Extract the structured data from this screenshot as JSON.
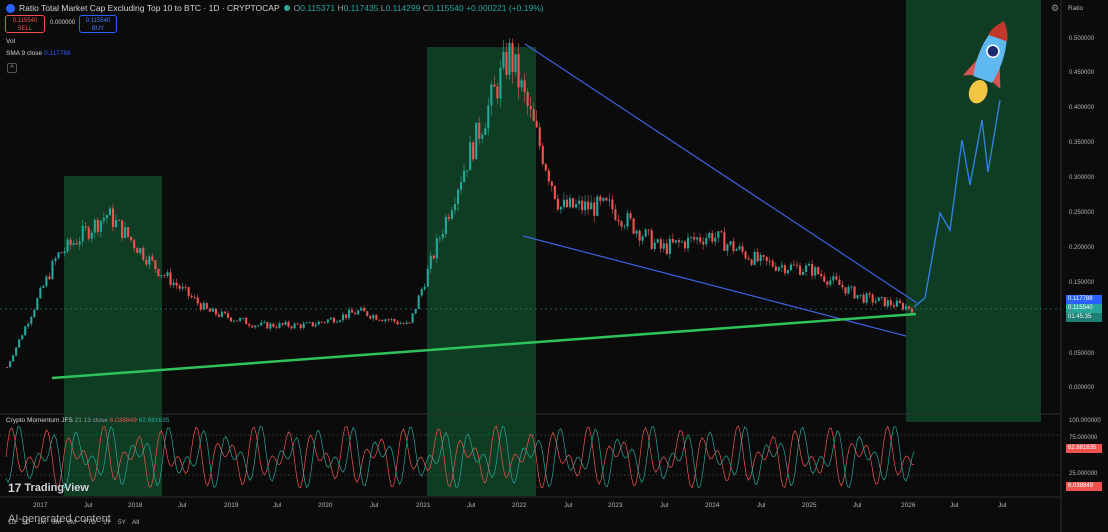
{
  "header": {
    "title": "Ratio Total Market Cap Excluding Top 10 to BTC · 1D · CRYPTOCAP",
    "open_label": "O",
    "open": "0.115371",
    "high_label": "H",
    "high": "0.117435",
    "low_label": "L",
    "low": "0.114299",
    "close_label": "C",
    "close": "0.115540",
    "change": "+0.000221 (+0.19%)"
  },
  "trade": {
    "sell_price": "0.115540",
    "sell_label": "SELL",
    "spread": "0.000000",
    "buy_price": "0.115540",
    "buy_label": "BUY"
  },
  "indicators": {
    "vol": "Vol",
    "sma_label": "SMA 9 close",
    "sma_value": "0.117788",
    "momentum_label": "Crypto Momentum JFS",
    "momentum_params": "21 13 close",
    "momentum_v1": "6.038849",
    "momentum_v2": "62.681635"
  },
  "scale_mode": "Ratio",
  "price_scale": [
    "0.500000",
    "0.450000",
    "0.400000",
    "0.350000",
    "0.300000",
    "0.250000",
    "0.200000",
    "0.150000",
    "0.100000",
    "0.050000",
    "0.000000"
  ],
  "price_tags": {
    "sma": "0.117788",
    "last": "0.115540",
    "countdown": "01:45:35"
  },
  "osc_scale": [
    "100.000000",
    "75.000000",
    "62.681635",
    "25.000000",
    "6.038849"
  ],
  "x_axis": [
    "2017",
    "Jul",
    "2018",
    "Jul",
    "2019",
    "Jul",
    "2020",
    "Jul",
    "2021",
    "Jul",
    "2022",
    "Jul",
    "2023",
    "Jul",
    "2024",
    "Jul",
    "2025",
    "Jul",
    "2026",
    "Jul",
    "Jul"
  ],
  "timeframes": [
    "1D",
    "5D",
    "1M",
    "3M",
    "6M",
    "YTD",
    "1Y",
    "5Y",
    "All"
  ],
  "brand": "TradingView",
  "watermark": "AI-generated content",
  "colors": {
    "bull": "#26a69a",
    "bear": "#ef5350",
    "trendline": "#3d63e0",
    "support": "#2fc25b",
    "zone": "#0f3d24",
    "projection": "#2f7fe0"
  },
  "chart_data": {
    "type": "line",
    "ylim": [
      0,
      0.5
    ],
    "x": [
      "2017-01",
      "2017-07",
      "2018-01",
      "2018-07",
      "2019-01",
      "2019-07",
      "2020-01",
      "2020-07",
      "2021-01",
      "2021-07",
      "2022-01",
      "2022-07",
      "2023-01",
      "2023-07",
      "2024-01",
      "2024-07",
      "2025-01",
      "2025-07",
      "2026-01"
    ],
    "series": [
      {
        "values": [
          0.03,
          0.19,
          0.25,
          0.17,
          0.11,
          0.09,
          0.09,
          0.11,
          0.09,
          0.3,
          0.48,
          0.26,
          0.26,
          0.2,
          0.22,
          0.18,
          0.17,
          0.13,
          0.115
        ]
      }
    ]
  }
}
